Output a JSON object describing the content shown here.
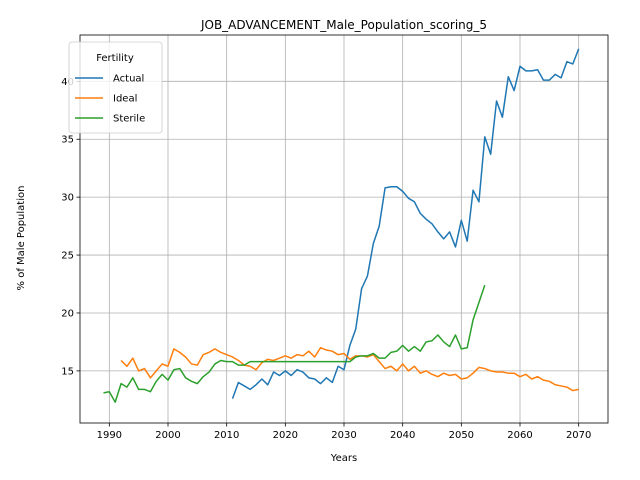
{
  "chart_data": {
    "type": "line",
    "title": "JOB_ADVANCEMENT_Male_Population_scoring_5",
    "xlabel": "Years",
    "ylabel": "% of Male Population",
    "xlim": [
      1985,
      2075
    ],
    "ylim": [
      10.5,
      44.0
    ],
    "xticks": [
      1990,
      2000,
      2010,
      2020,
      2030,
      2040,
      2050,
      2060,
      2070
    ],
    "yticks": [
      15,
      20,
      25,
      30,
      35,
      40
    ],
    "grid": true,
    "legend": {
      "title": "Fertility",
      "placement": "top-left"
    },
    "series": [
      {
        "name": "Actual",
        "color": "#1f77b4",
        "x": [
          2011,
          2012,
          2013,
          2014,
          2015,
          2016,
          2017,
          2018,
          2019,
          2020,
          2021,
          2022,
          2023,
          2024,
          2025,
          2026,
          2027,
          2028,
          2029,
          2030,
          2031,
          2032,
          2033,
          2034,
          2035,
          2036,
          2037,
          2038,
          2039,
          2040,
          2041,
          2042,
          2043,
          2044,
          2045,
          2046,
          2047,
          2048,
          2049,
          2050,
          2051,
          2052,
          2053,
          2054,
          2055,
          2056,
          2057,
          2058,
          2059,
          2060,
          2061,
          2062,
          2063,
          2064,
          2065,
          2066,
          2067,
          2068,
          2069,
          2070
        ],
        "values": [
          12.6,
          14.0,
          13.7,
          13.4,
          13.8,
          14.3,
          13.8,
          14.9,
          14.6,
          15.0,
          14.6,
          15.1,
          14.9,
          14.4,
          14.3,
          13.9,
          14.4,
          14.0,
          15.4,
          15.1,
          17.2,
          18.6,
          22.1,
          23.2,
          26.0,
          27.5,
          30.8,
          30.9,
          30.9,
          30.5,
          29.9,
          29.6,
          28.6,
          28.1,
          27.7,
          27.0,
          26.4,
          27.0,
          25.7,
          28.0,
          26.2,
          30.6,
          29.6,
          35.2,
          33.7,
          38.3,
          36.9,
          40.4,
          39.2,
          41.3,
          40.9,
          40.9,
          41.0,
          40.1,
          40.1,
          40.6,
          40.3,
          41.7,
          41.5,
          42.8
        ]
      },
      {
        "name": "Ideal",
        "color": "#ff7f0e",
        "x": [
          1992,
          1993,
          1994,
          1995,
          1996,
          1997,
          1998,
          1999,
          2000,
          2001,
          2002,
          2003,
          2004,
          2005,
          2006,
          2007,
          2008,
          2009,
          2010,
          2011,
          2012,
          2013,
          2014,
          2015,
          2016,
          2017,
          2018,
          2019,
          2020,
          2021,
          2022,
          2023,
          2024,
          2025,
          2026,
          2027,
          2028,
          2029,
          2030,
          2031,
          2032,
          2033,
          2034,
          2035,
          2036,
          2037,
          2038,
          2039,
          2040,
          2041,
          2042,
          2043,
          2044,
          2045,
          2046,
          2047,
          2048,
          2049,
          2050,
          2051,
          2052,
          2053,
          2054,
          2055,
          2056,
          2057,
          2058,
          2059,
          2060,
          2061,
          2062,
          2063,
          2064,
          2065,
          2066,
          2067,
          2068,
          2069,
          2070
        ],
        "values": [
          15.9,
          15.4,
          16.1,
          15.0,
          15.2,
          14.4,
          15.0,
          15.6,
          15.4,
          16.9,
          16.6,
          16.2,
          15.6,
          15.5,
          16.4,
          16.6,
          16.9,
          16.6,
          16.4,
          16.2,
          15.9,
          15.5,
          15.4,
          15.1,
          15.7,
          16.0,
          15.9,
          16.1,
          16.3,
          16.1,
          16.4,
          16.3,
          16.7,
          16.2,
          17.0,
          16.8,
          16.7,
          16.4,
          16.5,
          16.0,
          16.3,
          16.3,
          16.2,
          16.4,
          15.8,
          15.2,
          15.4,
          15.0,
          15.6,
          15.0,
          15.4,
          14.8,
          15.0,
          14.7,
          14.5,
          14.8,
          14.6,
          14.7,
          14.3,
          14.4,
          14.8,
          15.3,
          15.2,
          15.0,
          14.9,
          14.9,
          14.8,
          14.8,
          14.5,
          14.7,
          14.3,
          14.5,
          14.2,
          14.1,
          13.8,
          13.7,
          13.6,
          13.3,
          13.4
        ]
      },
      {
        "name": "Sterile",
        "color": "#2ca02c",
        "x": [
          1989,
          1990,
          1991,
          1992,
          1993,
          1994,
          1995,
          1996,
          1997,
          1998,
          1999,
          2000,
          2001,
          2002,
          2003,
          2004,
          2005,
          2006,
          2007,
          2008,
          2009,
          2010,
          2011,
          2012,
          2013,
          2014,
          2015,
          2016,
          2017,
          2018,
          2019,
          2020,
          2021,
          2022,
          2023,
          2024,
          2025,
          2026,
          2027,
          2028,
          2029,
          2030,
          2031,
          2032,
          2033,
          2034,
          2035,
          2036,
          2037,
          2038,
          2039,
          2040,
          2041,
          2042,
          2043,
          2044,
          2045,
          2046,
          2047,
          2048,
          2049,
          2050,
          2051,
          2052,
          2053,
          2054
        ],
        "values": [
          13.1,
          13.2,
          12.3,
          13.9,
          13.6,
          14.4,
          13.4,
          13.4,
          13.2,
          14.1,
          14.7,
          14.2,
          15.1,
          15.2,
          14.4,
          14.1,
          13.9,
          14.5,
          14.9,
          15.6,
          15.9,
          15.8,
          15.8,
          15.5,
          15.5,
          15.8,
          15.8,
          15.8,
          15.8,
          15.8,
          15.8,
          15.8,
          15.8,
          15.8,
          15.8,
          15.8,
          15.8,
          15.8,
          15.8,
          15.8,
          15.8,
          15.8,
          15.8,
          16.2,
          16.3,
          16.3,
          16.5,
          16.1,
          16.1,
          16.6,
          16.7,
          17.2,
          16.7,
          17.1,
          16.7,
          17.5,
          17.6,
          18.1,
          17.5,
          17.1,
          18.1,
          16.9,
          17.0,
          19.4,
          20.9,
          22.4
        ]
      }
    ]
  }
}
